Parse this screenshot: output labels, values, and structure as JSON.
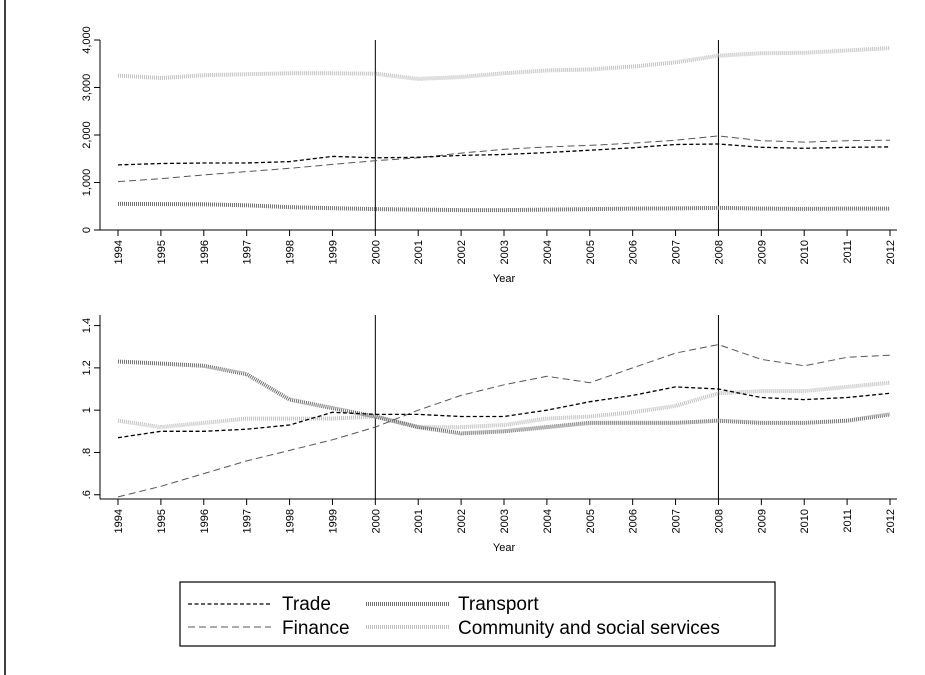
{
  "chart_data": [
    {
      "type": "line",
      "title": "",
      "xlabel": "Year",
      "ylabel": "",
      "ylim": [
        0,
        4000
      ],
      "yticks": [
        0,
        1000,
        2000,
        3000,
        4000
      ],
      "ytick_labels": [
        "0",
        "1,000",
        "2,000",
        "3,000",
        "4,000"
      ],
      "x": [
        "1994",
        "1995",
        "1996",
        "1997",
        "1998",
        "1999",
        "2000",
        "2001",
        "2002",
        "2003",
        "2004",
        "2005",
        "2006",
        "2007",
        "2008",
        "2009",
        "2010",
        "2011",
        "2012"
      ],
      "vlines": [
        "2000",
        "2008"
      ],
      "grid": false,
      "series": [
        {
          "name": "Trade",
          "color": "#000000",
          "style": "dash",
          "values": [
            1370,
            1400,
            1410,
            1410,
            1440,
            1550,
            1520,
            1530,
            1570,
            1590,
            1630,
            1680,
            1730,
            1800,
            1810,
            1740,
            1720,
            1740,
            1750
          ]
        },
        {
          "name": "Transport",
          "color": "#707070",
          "style": "dotdense",
          "values": [
            550,
            545,
            540,
            520,
            480,
            460,
            440,
            430,
            420,
            420,
            430,
            440,
            450,
            455,
            465,
            450,
            445,
            450,
            450
          ]
        },
        {
          "name": "Finance",
          "color": "#555555",
          "style": "longdash",
          "values": [
            1020,
            1080,
            1160,
            1230,
            1300,
            1380,
            1460,
            1520,
            1620,
            1700,
            1750,
            1780,
            1830,
            1890,
            1980,
            1880,
            1850,
            1880,
            1890
          ]
        },
        {
          "name": "Community and social services",
          "color": "#c0c0c0",
          "style": "dotdense",
          "values": [
            3250,
            3200,
            3260,
            3280,
            3300,
            3300,
            3290,
            3180,
            3220,
            3300,
            3360,
            3380,
            3440,
            3530,
            3670,
            3720,
            3730,
            3780,
            3830
          ]
        }
      ]
    },
    {
      "type": "line",
      "title": "",
      "xlabel": "Year",
      "ylabel": "",
      "ylim": [
        0.58,
        1.45
      ],
      "yticks": [
        0.6,
        0.8,
        1.0,
        1.2,
        1.4
      ],
      "ytick_labels": [
        ".6",
        ".8",
        "1",
        "1.2",
        "1.4"
      ],
      "x": [
        "1994",
        "1995",
        "1996",
        "1997",
        "1998",
        "1999",
        "2000",
        "2001",
        "2002",
        "2003",
        "2004",
        "2005",
        "2006",
        "2007",
        "2008",
        "2009",
        "2010",
        "2011",
        "2012"
      ],
      "vlines": [
        "2000",
        "2008"
      ],
      "grid": false,
      "series": [
        {
          "name": "Trade",
          "color": "#000000",
          "style": "dash",
          "values": [
            0.87,
            0.9,
            0.9,
            0.91,
            0.93,
            0.99,
            0.98,
            0.98,
            0.97,
            0.97,
            1.0,
            1.04,
            1.07,
            1.11,
            1.1,
            1.06,
            1.05,
            1.06,
            1.08
          ]
        },
        {
          "name": "Transport",
          "color": "#707070",
          "style": "dotdense",
          "values": [
            1.23,
            1.22,
            1.21,
            1.17,
            1.05,
            1.01,
            0.97,
            0.92,
            0.89,
            0.9,
            0.92,
            0.94,
            0.94,
            0.94,
            0.95,
            0.94,
            0.94,
            0.95,
            0.98
          ]
        },
        {
          "name": "Finance",
          "color": "#555555",
          "style": "longdash",
          "values": [
            0.59,
            0.64,
            0.7,
            0.76,
            0.81,
            0.86,
            0.92,
            1.0,
            1.07,
            1.12,
            1.16,
            1.13,
            1.2,
            1.27,
            1.31,
            1.24,
            1.21,
            1.25,
            1.26
          ]
        },
        {
          "name": "Community and social services",
          "color": "#c0c0c0",
          "style": "dotdense",
          "values": [
            0.95,
            0.92,
            0.94,
            0.96,
            0.96,
            0.96,
            0.97,
            0.92,
            0.92,
            0.93,
            0.96,
            0.97,
            0.99,
            1.02,
            1.08,
            1.09,
            1.09,
            1.11,
            1.13
          ]
        }
      ]
    }
  ],
  "legend": {
    "items": [
      {
        "label": "Trade",
        "series": 0
      },
      {
        "label": "Transport",
        "series": 1
      },
      {
        "label": "Finance",
        "series": 2
      },
      {
        "label": "Community and social services",
        "series": 3
      }
    ]
  }
}
